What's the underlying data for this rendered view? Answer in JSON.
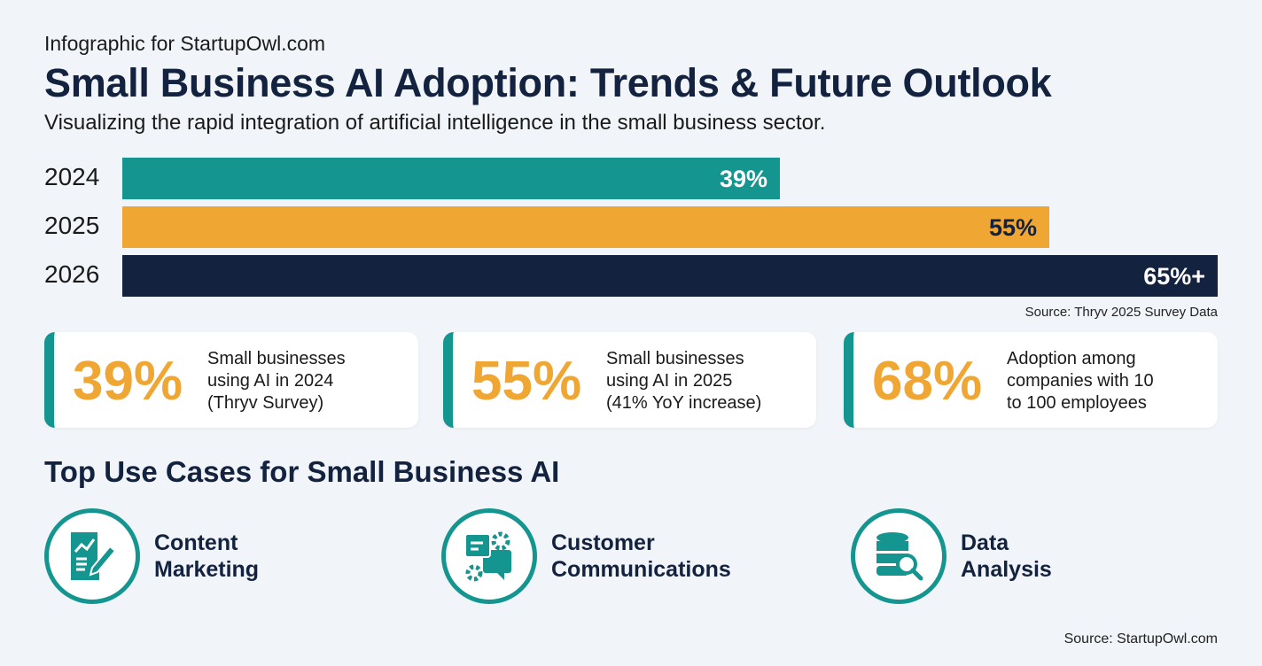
{
  "header": {
    "kicker": "Infographic for StartupOwl.com",
    "title": "Small Business AI Adoption: Trends & Future Outlook",
    "subtitle": "Visualizing the rapid integration of artificial intelligence in the small business sector."
  },
  "chart_data": {
    "type": "bar",
    "orientation": "horizontal",
    "categories": [
      "2024",
      "2025",
      "2026"
    ],
    "values": [
      39,
      55,
      65
    ],
    "data_labels": [
      "39%",
      "55%",
      "65%+"
    ],
    "colors": [
      "#15958f",
      "#f0a632",
      "#13223f"
    ],
    "label_colors": [
      "#ffffff",
      "#13223f",
      "#ffffff"
    ],
    "xlim": [
      0,
      65
    ],
    "grid": false,
    "source": "Source: Thryv 2025 Survey Data"
  },
  "stats": [
    {
      "value": "39%",
      "lines": [
        "Small businesses",
        "using AI in 2024",
        "(Thryv Survey)"
      ]
    },
    {
      "value": "55%",
      "lines": [
        "Small businesses",
        "using AI in 2025",
        "(41% YoY increase)"
      ]
    },
    {
      "value": "68%",
      "lines": [
        "Adoption among",
        "companies with 10",
        "to 100 employees"
      ]
    }
  ],
  "use_cases": {
    "title": "Top Use Cases for Small Business AI",
    "items": [
      {
        "icon": "content-marketing-icon",
        "lines": [
          "Content",
          "Marketing"
        ]
      },
      {
        "icon": "customer-communications-icon",
        "lines": [
          "Customer",
          "Communications"
        ]
      },
      {
        "icon": "data-analysis-icon",
        "lines": [
          "Data",
          "Analysis"
        ]
      }
    ]
  },
  "footer": {
    "source": "Source: StartupOwl.com"
  },
  "colors": {
    "teal": "#15958f",
    "orange": "#f0a632",
    "navy": "#13223f",
    "background": "#f1f4f8"
  }
}
